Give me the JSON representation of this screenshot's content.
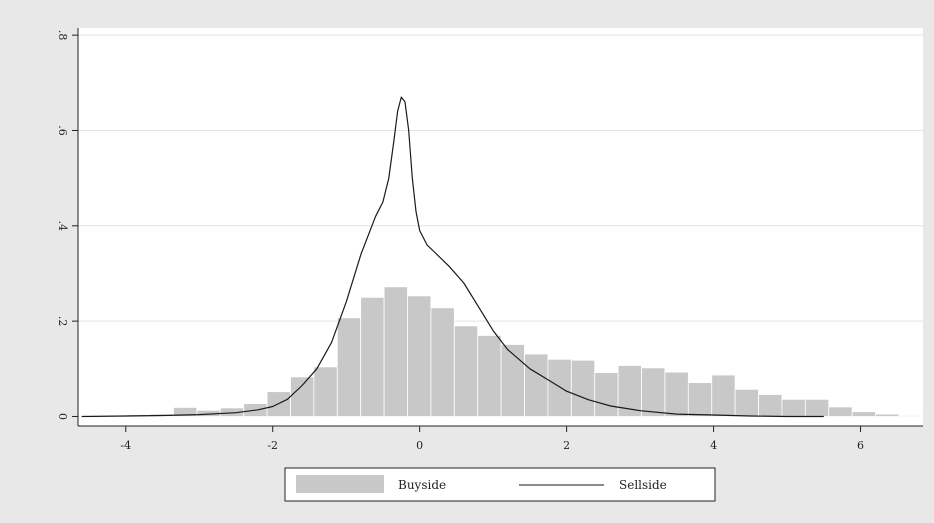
{
  "chart_data": {
    "type": "histogram",
    "title": "",
    "xlabel": "",
    "ylabel": "",
    "xlim": [
      -4.65,
      6.85
    ],
    "ylim": [
      -0.02,
      0.815
    ],
    "x_ticks": [
      -4,
      -2,
      0,
      2,
      4,
      6
    ],
    "x_tick_labels": [
      "-4",
      "-2",
      "0",
      "2",
      "4",
      "6"
    ],
    "y_ticks": [
      0,
      0.2,
      0.4,
      0.6,
      0.8
    ],
    "y_tick_labels": [
      "0",
      ".2",
      ".4",
      ".6",
      ".8"
    ],
    "grid": "horizontal",
    "legend_position": "bottom-center",
    "colors": {
      "bars": "#c8c8c8",
      "bar_edge": "#ffffff",
      "line": "#1a1a1a",
      "plot_bg": "#ffffff",
      "outer_bg": "#e8e8e8",
      "gridline": "#e3e3e3"
    },
    "series": [
      {
        "name": "Buyside",
        "kind": "histogram",
        "bin_width": 0.3185,
        "bin_starts": [
          -4.625,
          -4.306,
          -3.988,
          -3.669,
          -3.351,
          -3.032,
          -2.714,
          -2.395,
          -2.077,
          -1.758,
          -1.44,
          -1.121,
          -0.803,
          -0.484,
          -0.166,
          0.153,
          0.471,
          0.79,
          1.108,
          1.427,
          1.745,
          2.064,
          2.382,
          2.701,
          3.019,
          3.338,
          3.656,
          3.975,
          4.293,
          4.612,
          4.93,
          5.249,
          5.567,
          5.886,
          6.204,
          6.523
        ],
        "values": [
          0.001,
          0.002,
          0.004,
          0.005,
          0.019,
          0.013,
          0.018,
          0.027,
          0.052,
          0.083,
          0.104,
          0.207,
          0.25,
          0.272,
          0.253,
          0.228,
          0.19,
          0.17,
          0.151,
          0.131,
          0.12,
          0.118,
          0.092,
          0.107,
          0.102,
          0.093,
          0.071,
          0.087,
          0.057,
          0.046,
          0.036,
          0.036,
          0.02,
          0.01,
          0.005,
          0.002
        ]
      },
      {
        "name": "Sellside",
        "kind": "line",
        "x": [
          -4.6,
          -4.0,
          -3.5,
          -3.0,
          -2.5,
          -2.2,
          -2.0,
          -1.8,
          -1.6,
          -1.4,
          -1.2,
          -1.0,
          -0.8,
          -0.6,
          -0.5,
          -0.42,
          -0.35,
          -0.3,
          -0.25,
          -0.2,
          -0.15,
          -0.1,
          -0.05,
          0.0,
          0.1,
          0.2,
          0.4,
          0.6,
          0.8,
          1.0,
          1.2,
          1.5,
          1.8,
          2.0,
          2.3,
          2.6,
          3.0,
          3.5,
          4.0,
          4.5,
          5.0,
          5.5
        ],
        "y": [
          0.0,
          0.001,
          0.002,
          0.004,
          0.008,
          0.014,
          0.021,
          0.036,
          0.065,
          0.1,
          0.155,
          0.24,
          0.34,
          0.42,
          0.45,
          0.5,
          0.58,
          0.64,
          0.67,
          0.66,
          0.6,
          0.5,
          0.43,
          0.39,
          0.36,
          0.345,
          0.315,
          0.28,
          0.23,
          0.18,
          0.14,
          0.1,
          0.072,
          0.053,
          0.035,
          0.022,
          0.012,
          0.005,
          0.003,
          0.001,
          0.0,
          0.0
        ]
      }
    ]
  }
}
